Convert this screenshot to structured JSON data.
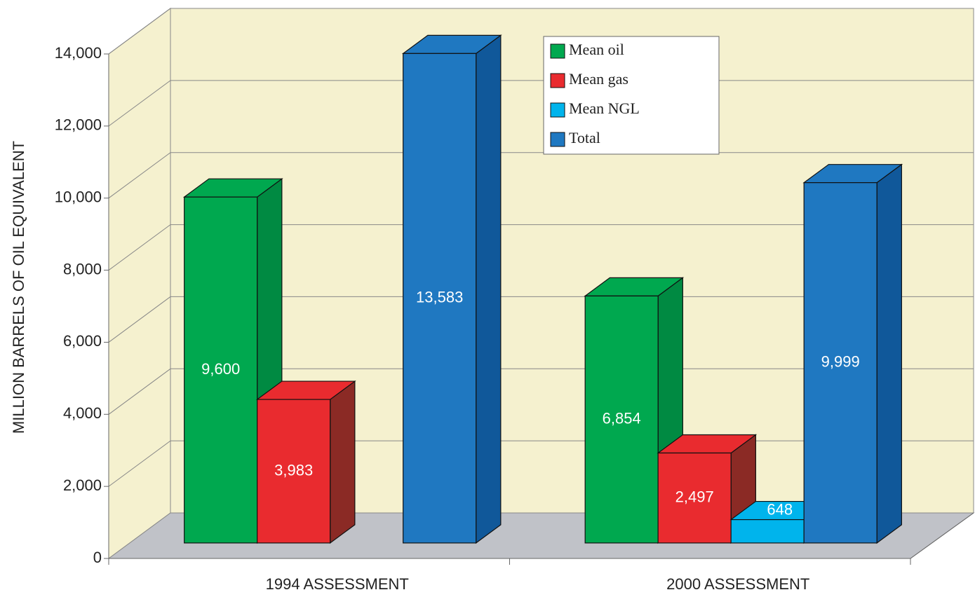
{
  "chart_data": {
    "type": "bar3d",
    "ylabel": "MILLION BARRELS OF OIL EQUIVALENT",
    "categories": [
      "1994 ASSESSMENT",
      "2000 ASSESSMENT"
    ],
    "series": [
      {
        "name": "Mean oil",
        "color": "#00a84f",
        "side_color": "#008a42",
        "values": [
          9600,
          6854
        ],
        "value_labels": [
          "9,600",
          "6,854"
        ]
      },
      {
        "name": "Mean gas",
        "color": "#e92b2f",
        "side_color": "#8b2a25",
        "values": [
          3983,
          2497
        ],
        "value_labels": [
          "3,983",
          "2,497"
        ]
      },
      {
        "name": "Mean NGL",
        "color": "#00b4ec",
        "side_color": "#0090c4",
        "values": [
          null,
          648
        ],
        "value_labels": [
          null,
          "648"
        ]
      },
      {
        "name": "Total",
        "color": "#1f78c1",
        "side_color": "#10589a",
        "values": [
          13583,
          9999
        ],
        "value_labels": [
          "13,583",
          "9,999"
        ]
      }
    ],
    "ylim": [
      0,
      14000
    ],
    "yticks": [
      0,
      {
        "value": 2000,
        "label": "2,000"
      },
      {
        "value": 4000,
        "label": "4,000"
      },
      {
        "value": 6000,
        "label": "6,000"
      },
      {
        "value": 8000,
        "label": "8,000"
      },
      {
        "value": 10000,
        "label": "10,000"
      },
      {
        "value": 12000,
        "label": "12,000"
      },
      {
        "value": 14000,
        "label": "14,000"
      }
    ],
    "grid": true,
    "wall_color": "#f5f1cf",
    "floor_color": "#c0c2c8",
    "legend": "top-right"
  }
}
